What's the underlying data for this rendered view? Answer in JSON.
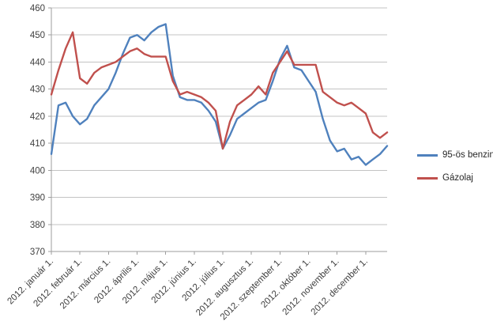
{
  "chart_data": {
    "type": "line",
    "title": "",
    "xlabel": "",
    "ylabel": "",
    "ylim": [
      370,
      460
    ],
    "y_ticks": [
      370,
      380,
      390,
      400,
      410,
      420,
      430,
      440,
      450,
      460
    ],
    "grid": true,
    "legend_position": "right",
    "points_per_month": 4,
    "x_tick_labels": [
      "2012. január 1.",
      "2012. február 1.",
      "2012. március 1.",
      "2012. április 1.",
      "2012. május 1.",
      "2012. június 1.",
      "2012. július 1.",
      "2012. augusztus 1.",
      "2012. szeptember 1.",
      "2012. október 1.",
      "2012. november 1.",
      "2012. december 1."
    ],
    "series": [
      {
        "id": "benzin",
        "name": "95-ös benzin",
        "color": "#4F81BD",
        "values": [
          406,
          424,
          425,
          420,
          417,
          419,
          424,
          427,
          430,
          436,
          443,
          449,
          450,
          448,
          451,
          453,
          454,
          435,
          427,
          426,
          426,
          425,
          422,
          418,
          408,
          413,
          419,
          421,
          423,
          425,
          426,
          433,
          441,
          446,
          438,
          437,
          433,
          429,
          419,
          411,
          407,
          408,
          404,
          405,
          402,
          404,
          406,
          409
        ]
      },
      {
        "id": "gazolaj",
        "name": "Gázolaj",
        "color": "#C0504D",
        "values": [
          428,
          437,
          445,
          451,
          434,
          432,
          436,
          438,
          439,
          440,
          442,
          444,
          445,
          443,
          442,
          442,
          442,
          433,
          428,
          429,
          428,
          427,
          425,
          422,
          408,
          418,
          424,
          426,
          428,
          431,
          428,
          436,
          440,
          444,
          439,
          439,
          439,
          439,
          429,
          427,
          425,
          424,
          425,
          423,
          421,
          414,
          412,
          414
        ]
      }
    ],
    "colors": {
      "gridline": "#C3C3C3",
      "axis": "#9E9E9E",
      "label_text": "#404040"
    }
  }
}
